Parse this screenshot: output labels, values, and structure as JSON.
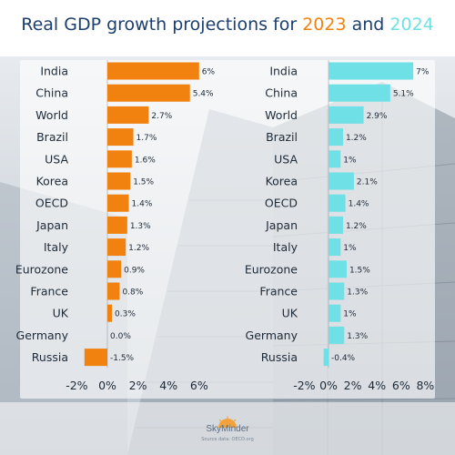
{
  "title": {
    "prefix": "Real GDP growth projections for ",
    "year1": "2023",
    "connector": " and ",
    "year2": "2024"
  },
  "colors": {
    "title_blue": "#1b3f6e",
    "orange": "#f2820f",
    "cyan": "#6fe0e6"
  },
  "footer": {
    "brand": "SkyMinder",
    "source": "Source data: OECD.org",
    "logo_icon": "sun-logo-icon"
  },
  "chart_data": [
    {
      "type": "bar",
      "orientation": "horizontal",
      "year": "2023",
      "color": "#f2820f",
      "categories": [
        "India",
        "China",
        "World",
        "Brazil",
        "USA",
        "Korea",
        "OECD",
        "Japan",
        "Italy",
        "Eurozone",
        "France",
        "UK",
        "Germany",
        "Russia"
      ],
      "values": [
        6,
        5.4,
        2.7,
        1.7,
        1.6,
        1.5,
        1.4,
        1.3,
        1.2,
        0.9,
        0.8,
        0.3,
        0.0,
        -1.5
      ],
      "value_labels": [
        "6%",
        "5.4%",
        "2.7%",
        "1.7%",
        "1.6%",
        "1.5%",
        "1.4%",
        "1.3%",
        "1.2%",
        "0.9%",
        "0.8%",
        "0.3%",
        "0.0%",
        "-1.5%"
      ],
      "xlim": [
        -2,
        6
      ],
      "xticks": [
        -2,
        0,
        2,
        4,
        6
      ],
      "xtick_labels": [
        "-2%",
        "0%",
        "2%",
        "4%",
        "6%"
      ]
    },
    {
      "type": "bar",
      "orientation": "horizontal",
      "year": "2024",
      "color": "#6fe0e6",
      "categories": [
        "India",
        "China",
        "World",
        "Brazil",
        "USA",
        "Korea",
        "OECD",
        "Japan",
        "Italy",
        "Eurozone",
        "France",
        "UK",
        "Germany",
        "Russia"
      ],
      "values": [
        7,
        5.1,
        2.9,
        1.2,
        1,
        2.1,
        1.4,
        1.2,
        1,
        1.5,
        1.3,
        1,
        1.3,
        -0.4
      ],
      "value_labels": [
        "7%",
        "5.1%",
        "2.9%",
        "1.2%",
        "1%",
        "2.1%",
        "1.4%",
        "1.2%",
        "1%",
        "1.5%",
        "1.3%",
        "1%",
        "1.3%",
        "-0.4%"
      ],
      "xlim": [
        -2,
        8
      ],
      "xticks": [
        -2,
        0,
        2,
        4,
        6,
        8
      ],
      "xtick_labels": [
        "-2%",
        "0%",
        "2%",
        "4%",
        "6%",
        "8%"
      ]
    }
  ]
}
